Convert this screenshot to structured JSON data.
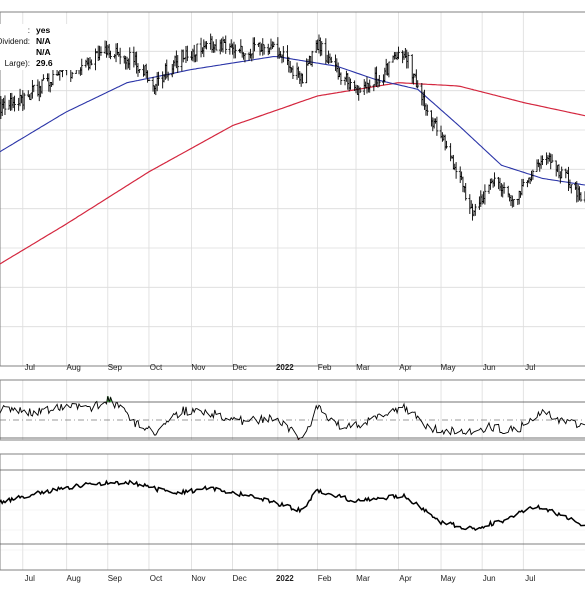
{
  "info_box": [
    {
      "label": ":",
      "value": "yes"
    },
    {
      "label": "Dividend:",
      "value": "N/A"
    },
    {
      "label": "",
      "value": "N/A"
    },
    {
      "label": "Large):",
      "value": "29.6"
    }
  ],
  "colors": {
    "price": "#000000",
    "ma_50": "#2b35a8",
    "ma_200": "#d4273f",
    "rsi_overbought_fill": "#3a9a3a",
    "rsi_oversold_fill": "#c0283a",
    "grid": "#dcdcdc",
    "panel_border": "#808080"
  },
  "chart_data": [
    {
      "type": "ohlc",
      "panel": "price",
      "x_range": [
        "2021-06-10",
        "2022-08-15"
      ],
      "y_range": [
        0,
        100
      ],
      "x_tick_labels": [
        "Jul",
        "Aug",
        "Sep",
        "Oct",
        "Nov",
        "Dec",
        "2022",
        "Feb",
        "Mar",
        "Apr",
        "May",
        "Jun",
        "Jul"
      ],
      "x_tick_dates": [
        "2021-07-01",
        "2021-08-02",
        "2021-09-01",
        "2021-10-01",
        "2021-11-01",
        "2021-12-01",
        "2022-01-03",
        "2022-02-01",
        "2022-03-01",
        "2022-04-01",
        "2022-05-02",
        "2022-06-01",
        "2022-07-01"
      ],
      "grid": true,
      "price_anchors": [
        {
          "date": "2021-06-10",
          "close": 73
        },
        {
          "date": "2021-07-01",
          "close": 76
        },
        {
          "date": "2021-07-25",
          "close": 83
        },
        {
          "date": "2021-08-15",
          "close": 86
        },
        {
          "date": "2021-09-01",
          "close": 91
        },
        {
          "date": "2021-09-20",
          "close": 88
        },
        {
          "date": "2021-10-05",
          "close": 81
        },
        {
          "date": "2021-10-25",
          "close": 89
        },
        {
          "date": "2021-11-15",
          "close": 93
        },
        {
          "date": "2021-12-10",
          "close": 91
        },
        {
          "date": "2022-01-01",
          "close": 92
        },
        {
          "date": "2022-01-20",
          "close": 82
        },
        {
          "date": "2022-02-01",
          "close": 93
        },
        {
          "date": "2022-02-10",
          "close": 87
        },
        {
          "date": "2022-03-01",
          "close": 79
        },
        {
          "date": "2022-03-20",
          "close": 83
        },
        {
          "date": "2022-04-05",
          "close": 91
        },
        {
          "date": "2022-04-20",
          "close": 74
        },
        {
          "date": "2022-05-10",
          "close": 58
        },
        {
          "date": "2022-05-25",
          "close": 42
        },
        {
          "date": "2022-06-10",
          "close": 52
        },
        {
          "date": "2022-06-25",
          "close": 45
        },
        {
          "date": "2022-07-10",
          "close": 55
        },
        {
          "date": "2022-07-20",
          "close": 58
        },
        {
          "date": "2022-08-05",
          "close": 50
        },
        {
          "date": "2022-08-15",
          "close": 46
        }
      ],
      "ma_50_anchors": [
        {
          "date": "2021-06-10",
          "value": 59
        },
        {
          "date": "2021-08-01",
          "value": 72
        },
        {
          "date": "2021-09-15",
          "value": 81
        },
        {
          "date": "2021-11-01",
          "value": 85
        },
        {
          "date": "2022-01-01",
          "value": 89
        },
        {
          "date": "2022-02-15",
          "value": 86
        },
        {
          "date": "2022-03-15",
          "value": 82
        },
        {
          "date": "2022-04-15",
          "value": 79
        },
        {
          "date": "2022-05-15",
          "value": 68
        },
        {
          "date": "2022-06-15",
          "value": 56
        },
        {
          "date": "2022-07-15",
          "value": 52
        },
        {
          "date": "2022-08-15",
          "value": 50
        }
      ],
      "ma_200_anchors": [
        {
          "date": "2021-06-10",
          "value": 25
        },
        {
          "date": "2021-08-01",
          "value": 38
        },
        {
          "date": "2021-10-01",
          "value": 54
        },
        {
          "date": "2021-12-01",
          "value": 68
        },
        {
          "date": "2022-02-01",
          "value": 77
        },
        {
          "date": "2022-04-01",
          "value": 81
        },
        {
          "date": "2022-05-15",
          "value": 80
        },
        {
          "date": "2022-07-01",
          "value": 75
        },
        {
          "date": "2022-08-15",
          "value": 71
        }
      ]
    },
    {
      "type": "line",
      "panel": "rsi",
      "y_range": [
        0,
        100
      ],
      "overbought": 70,
      "oversold": 30,
      "midline": 50,
      "anchors": [
        {
          "date": "2021-06-10",
          "value": 62
        },
        {
          "date": "2021-07-10",
          "value": 58
        },
        {
          "date": "2021-08-01",
          "value": 66
        },
        {
          "date": "2021-08-20",
          "value": 62
        },
        {
          "date": "2021-09-02",
          "value": 74
        },
        {
          "date": "2021-09-20",
          "value": 48
        },
        {
          "date": "2021-10-05",
          "value": 35
        },
        {
          "date": "2021-10-25",
          "value": 60
        },
        {
          "date": "2021-11-15",
          "value": 58
        },
        {
          "date": "2021-12-10",
          "value": 48
        },
        {
          "date": "2022-01-01",
          "value": 52
        },
        {
          "date": "2022-01-22",
          "value": 26
        },
        {
          "date": "2022-02-01",
          "value": 66
        },
        {
          "date": "2022-02-15",
          "value": 44
        },
        {
          "date": "2022-03-05",
          "value": 45
        },
        {
          "date": "2022-04-05",
          "value": 64
        },
        {
          "date": "2022-04-25",
          "value": 40
        },
        {
          "date": "2022-05-15",
          "value": 36
        },
        {
          "date": "2022-06-05",
          "value": 42
        },
        {
          "date": "2022-06-25",
          "value": 38
        },
        {
          "date": "2022-07-15",
          "value": 58
        },
        {
          "date": "2022-08-01",
          "value": 48
        },
        {
          "date": "2022-08-15",
          "value": 40
        }
      ]
    },
    {
      "type": "line",
      "panel": "lower",
      "y_range": [
        0,
        100
      ],
      "anchors": [
        {
          "date": "2021-06-10",
          "value": 55
        },
        {
          "date": "2021-07-10",
          "value": 68
        },
        {
          "date": "2021-08-15",
          "value": 80
        },
        {
          "date": "2021-09-15",
          "value": 84
        },
        {
          "date": "2021-10-20",
          "value": 68
        },
        {
          "date": "2021-11-15",
          "value": 76
        },
        {
          "date": "2021-12-20",
          "value": 62
        },
        {
          "date": "2022-01-20",
          "value": 45
        },
        {
          "date": "2022-02-01",
          "value": 72
        },
        {
          "date": "2022-03-01",
          "value": 58
        },
        {
          "date": "2022-04-05",
          "value": 66
        },
        {
          "date": "2022-05-01",
          "value": 30
        },
        {
          "date": "2022-05-25",
          "value": 20
        },
        {
          "date": "2022-06-20",
          "value": 34
        },
        {
          "date": "2022-07-10",
          "value": 52
        },
        {
          "date": "2022-07-25",
          "value": 42
        },
        {
          "date": "2022-08-15",
          "value": 24
        }
      ]
    }
  ]
}
